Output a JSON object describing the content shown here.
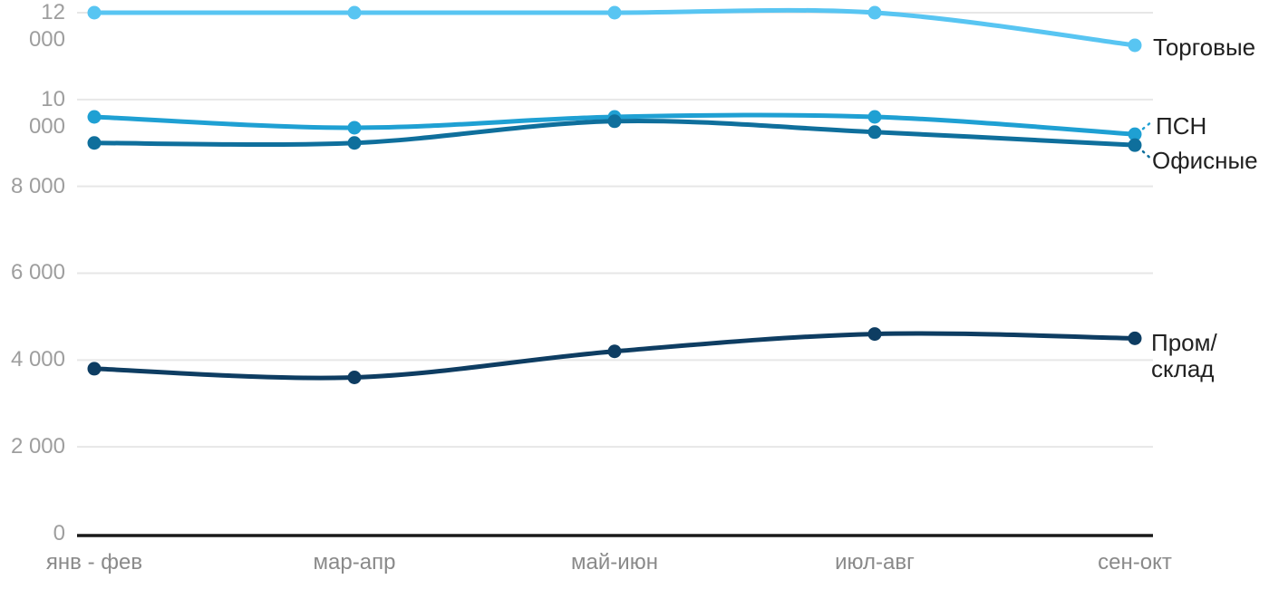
{
  "colors": {
    "background": "#FFFFFF",
    "grid": "#E7E7E7",
    "axis": "#1A1A1A",
    "y_tick_text": "#9E9E9E",
    "x_tick_text": "#8A8A8A",
    "series_label_text": "#212121"
  },
  "chart_data": {
    "type": "line",
    "title": "",
    "xlabel": "",
    "ylabel": "",
    "grid": "horizontal",
    "legend_position": "right-of-line-endpoints",
    "ylim": [
      0,
      12000
    ],
    "categories": [
      "янв - фев",
      "мар-апр",
      "май-июн",
      "июл-авг",
      "сен-окт"
    ],
    "y_ticks": [
      {
        "label": "12 000",
        "value": 12000
      },
      {
        "label": "10 000",
        "value": 10000
      },
      {
        "label": "8 000",
        "value": 8000
      },
      {
        "label": "6 000",
        "value": 6000
      },
      {
        "label": "4 000",
        "value": 4000
      },
      {
        "label": "2 000",
        "value": 2000
      },
      {
        "label": "0",
        "value": 0
      }
    ],
    "series": [
      {
        "name": "Торговые",
        "label": "Торговые",
        "color": "#58C5F2",
        "values": [
          12000,
          12000,
          12000,
          12000,
          11250
        ]
      },
      {
        "name": "ПСН",
        "label": "ПСН",
        "color": "#1FA0D3",
        "callout": "up",
        "values": [
          9600,
          9350,
          9600,
          9600,
          9200
        ]
      },
      {
        "name": "Офисные",
        "label": "Офисные",
        "color": "#0F6F9C",
        "callout": "down",
        "values": [
          9000,
          9000,
          9500,
          9250,
          8950
        ]
      },
      {
        "name": "Пром/склад",
        "label": "Пром/\nсклад",
        "color": "#0E3D62",
        "values": [
          3800,
          3600,
          4200,
          4600,
          4500
        ]
      }
    ]
  }
}
